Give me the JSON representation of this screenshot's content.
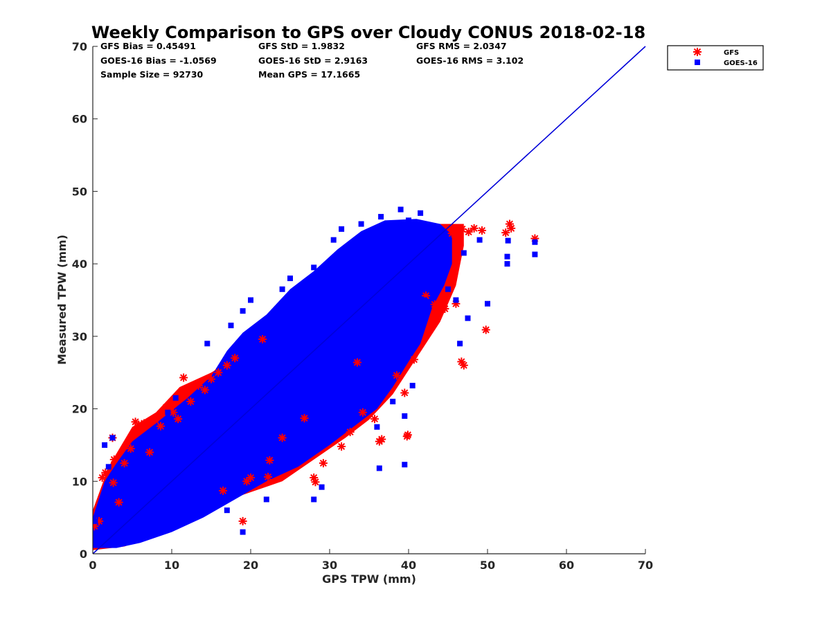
{
  "chart_data": {
    "type": "scatter",
    "title": "Weekly Comparison to GPS over Cloudy CONUS 2018-02-18",
    "xlabel": "GPS TPW (mm)",
    "ylabel": "Measured TPW (mm)",
    "xlim": [
      0,
      70
    ],
    "ylim": [
      0,
      70
    ],
    "xticks": [
      0,
      10,
      20,
      30,
      40,
      50,
      60,
      70
    ],
    "yticks": [
      0,
      10,
      20,
      30,
      40,
      50,
      60,
      70
    ],
    "grid": false,
    "legend_position": "top-right outside",
    "stats": [
      [
        "GFS Bias = 0.45491",
        "GFS StD = 1.9832",
        "GFS RMS = 2.0347"
      ],
      [
        "GOES-16 Bias = -1.0569",
        "GOES-16 StD = 2.9163",
        "GOES-16 RMS = 3.102"
      ],
      [
        "Sample Size = 92730",
        "Mean GPS = 17.1665",
        ""
      ]
    ],
    "reference_line": {
      "x": [
        0,
        70
      ],
      "y": [
        0,
        70
      ],
      "color": "#0000d9"
    },
    "series": [
      {
        "name": "GFS",
        "marker": "asterisk",
        "color": "#ff0000",
        "points": [
          [
            0.2,
            3.8
          ],
          [
            0.8,
            4.5
          ],
          [
            1.2,
            10.5
          ],
          [
            1.6,
            11.2
          ],
          [
            2.5,
            16.0
          ],
          [
            2.6,
            9.8
          ],
          [
            2.7,
            13.0
          ],
          [
            3.3,
            7.1
          ],
          [
            4.0,
            12.5
          ],
          [
            4.8,
            14.5
          ],
          [
            5.4,
            18.2
          ],
          [
            5.8,
            17.8
          ],
          [
            6.5,
            18.0
          ],
          [
            7.2,
            14.0
          ],
          [
            7.9,
            18.5
          ],
          [
            8.6,
            17.6
          ],
          [
            9.3,
            20.2
          ],
          [
            10.2,
            19.5
          ],
          [
            10.8,
            18.6
          ],
          [
            11.5,
            24.3
          ],
          [
            11.9,
            22.5
          ],
          [
            12.4,
            21.0
          ],
          [
            13.4,
            23.2
          ],
          [
            14.2,
            22.6
          ],
          [
            15.0,
            24.1
          ],
          [
            15.9,
            25.0
          ],
          [
            17.0,
            26.0
          ],
          [
            18.0,
            27.0
          ],
          [
            16.5,
            8.7
          ],
          [
            19.0,
            4.5
          ],
          [
            19.5,
            10.0
          ],
          [
            20.0,
            10.5
          ],
          [
            22.2,
            10.6
          ],
          [
            22.4,
            12.9
          ],
          [
            21.5,
            29.6
          ],
          [
            24.0,
            16.0
          ],
          [
            26.8,
            18.7
          ],
          [
            28.0,
            10.5
          ],
          [
            28.2,
            9.9
          ],
          [
            29.2,
            12.5
          ],
          [
            31.5,
            14.8
          ],
          [
            32.6,
            16.8
          ],
          [
            33.5,
            26.4
          ],
          [
            34.2,
            19.5
          ],
          [
            35.7,
            18.6
          ],
          [
            36.3,
            15.5
          ],
          [
            36.6,
            15.8
          ],
          [
            38.5,
            24.6
          ],
          [
            39.5,
            22.2
          ],
          [
            39.8,
            16.2
          ],
          [
            39.9,
            16.4
          ],
          [
            40.7,
            26.8
          ],
          [
            42.2,
            35.6
          ],
          [
            43.3,
            34.4
          ],
          [
            44.6,
            33.8
          ],
          [
            45.6,
            38.2
          ],
          [
            46.0,
            34.5
          ],
          [
            46.7,
            26.5
          ],
          [
            47.0,
            26.0
          ],
          [
            49.8,
            30.9
          ],
          [
            45.5,
            44.2
          ],
          [
            46.8,
            44.8
          ],
          [
            47.6,
            44.4
          ],
          [
            48.3,
            44.9
          ],
          [
            49.3,
            44.6
          ],
          [
            52.3,
            44.3
          ],
          [
            52.8,
            45.5
          ],
          [
            53.0,
            44.9
          ],
          [
            56.0,
            43.5
          ]
        ]
      },
      {
        "name": "GOES-16",
        "marker": "square",
        "color": "#0000ff",
        "points": [
          [
            19.0,
            3.0
          ],
          [
            17.0,
            6.0
          ],
          [
            22.0,
            7.5
          ],
          [
            28.0,
            7.5
          ],
          [
            29.0,
            9.2
          ],
          [
            36.3,
            11.8
          ],
          [
            39.5,
            12.3
          ],
          [
            39.5,
            19.0
          ],
          [
            36.0,
            17.5
          ],
          [
            38.0,
            21.0
          ],
          [
            40.5,
            23.2
          ],
          [
            42.0,
            35.0
          ],
          [
            43.0,
            37.8
          ],
          [
            45.0,
            36.5
          ],
          [
            46.0,
            35.0
          ],
          [
            47.5,
            32.5
          ],
          [
            50.0,
            34.5
          ],
          [
            46.5,
            29.0
          ],
          [
            52.5,
            41.0
          ],
          [
            52.5,
            40.0
          ],
          [
            52.6,
            43.2
          ],
          [
            56.0,
            41.3
          ],
          [
            56.0,
            43.0
          ],
          [
            49.0,
            43.3
          ],
          [
            47.0,
            41.5
          ],
          [
            39.0,
            47.5
          ],
          [
            36.5,
            46.5
          ],
          [
            41.5,
            47.0
          ],
          [
            40.0,
            46.0
          ],
          [
            34.0,
            45.5
          ],
          [
            31.5,
            44.8
          ],
          [
            30.5,
            43.3
          ],
          [
            32.5,
            40.0
          ],
          [
            28.0,
            39.5
          ],
          [
            25.0,
            38.0
          ],
          [
            26.0,
            36.5
          ],
          [
            24.0,
            36.5
          ],
          [
            19.0,
            33.5
          ],
          [
            17.5,
            31.5
          ],
          [
            20.0,
            35.0
          ],
          [
            14.5,
            29.0
          ],
          [
            10.5,
            21.5
          ],
          [
            9.5,
            19.5
          ],
          [
            2.0,
            12.0
          ],
          [
            2.5,
            16.0
          ],
          [
            3.5,
            9.0
          ],
          [
            1.5,
            15.0
          ],
          [
            0.3,
            4.5
          ]
        ]
      }
    ]
  }
}
